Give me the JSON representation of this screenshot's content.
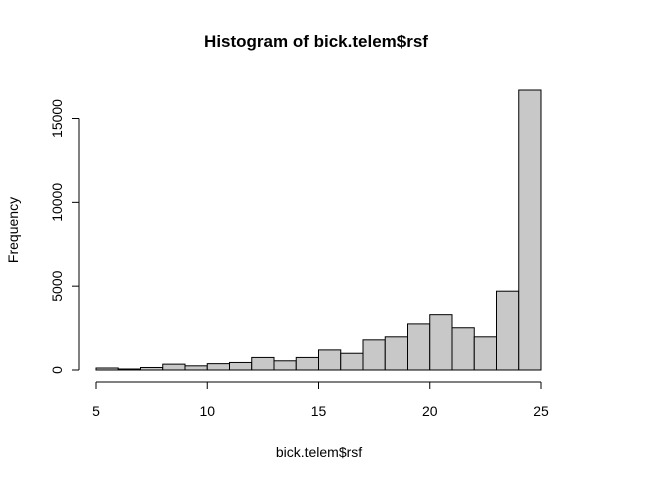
{
  "chart_data": {
    "type": "bar",
    "title": "Histogram of bick.telem$rsf",
    "xlabel": "bick.telem$rsf",
    "ylabel": "Frequency",
    "bin_edges": [
      5,
      6,
      7,
      8,
      9,
      10,
      11,
      12,
      13,
      14,
      15,
      16,
      17,
      18,
      19,
      20,
      21,
      22,
      23,
      24,
      25
    ],
    "values": [
      120,
      60,
      150,
      350,
      250,
      380,
      450,
      750,
      550,
      750,
      1200,
      1000,
      1800,
      1980,
      2750,
      3300,
      2520,
      1980,
      4700,
      16700
    ],
    "xlim": [
      5,
      25
    ],
    "ylim": [
      0,
      16700
    ],
    "x_ticks": [
      5,
      10,
      15,
      20,
      25
    ],
    "y_ticks": [
      0,
      5000,
      10000,
      15000
    ],
    "bar_fill": "#c8c8c8",
    "grid": false
  }
}
